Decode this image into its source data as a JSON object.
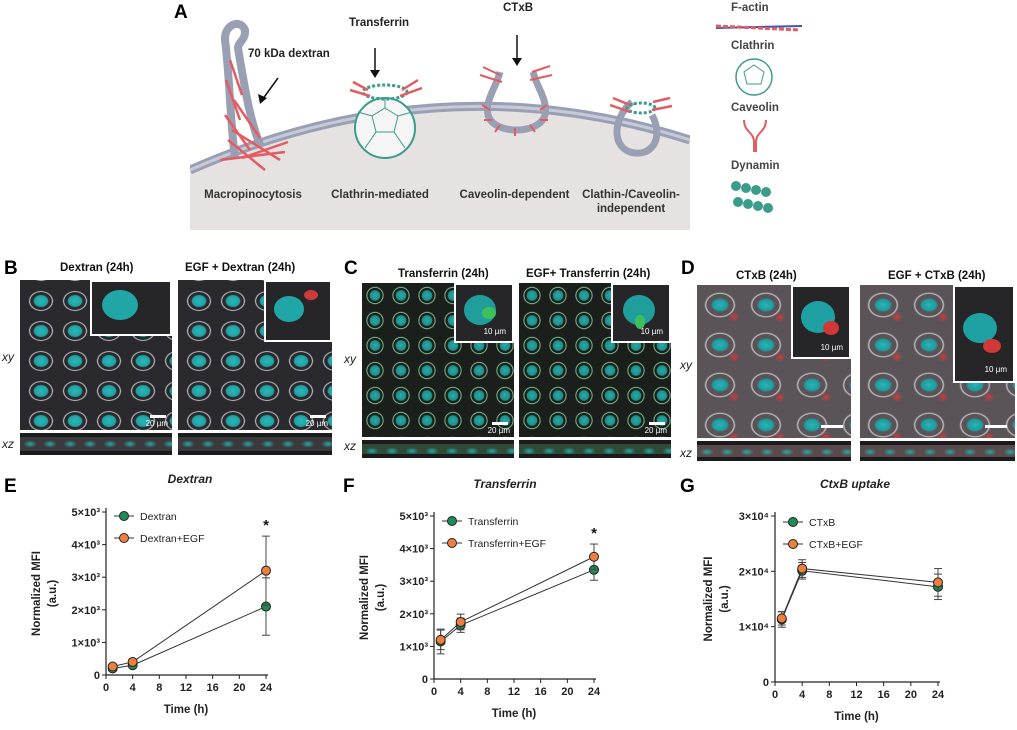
{
  "panels": {
    "A": "A",
    "B": "B",
    "C": "C",
    "D": "D",
    "E": "E",
    "F": "F",
    "G": "G"
  },
  "schematic": {
    "cargo": {
      "dextran": "70 kDa dextran",
      "transferrin": "Transferrin",
      "ctxb": "CTxB"
    },
    "routes": {
      "macropinocytosis": "Macropinocytosis",
      "clathrin": "Clathrin-mediated",
      "caveolin": "Caveolin-dependent",
      "independent_line1": "Clathin-/Caveolin-",
      "independent_line2": "independent"
    },
    "legend": {
      "factin": "F-actin",
      "clathrin": "Clathrin",
      "caveolin": "Caveolin",
      "dynamin": "Dynamin"
    },
    "colors": {
      "membrane": "#9aa0b4",
      "cytoplasm": "#e6e2e2",
      "actin": "#e25c63",
      "clathrin": "#3b9c8c"
    }
  },
  "microscopy": {
    "B": {
      "left_title": "Dextran (24h)",
      "right_title": "EGF + Dextran (24h)",
      "scale_left": "20 µm",
      "scale_right": "20 µm"
    },
    "C": {
      "left_title": "Transferrin (24h)",
      "right_title": "EGF+ Transferrin (24h)",
      "scale_left": "20 µm",
      "scale_right": "20 µm",
      "inset_scale": "10 µm"
    },
    "D": {
      "left_title": "CTxB (24h)",
      "right_title": "EGF + CTxB (24h)",
      "inset_scale": "10 µm"
    },
    "planes": {
      "xy": "xy",
      "xz": "xz"
    }
  },
  "chart_data": [
    {
      "panel": "E",
      "type": "line",
      "title": "Dextran",
      "xlabel": "Time (h)",
      "ylabel_line1": "Normalized MFI",
      "ylabel_line2": "(a.u.)",
      "x": [
        1,
        4,
        24
      ],
      "xticks": [
        "0",
        "4",
        "8",
        "12",
        "16",
        "20",
        "24"
      ],
      "xlim": [
        0,
        24
      ],
      "yticks": [
        "0",
        "1×10³",
        "2×10³",
        "3×10³",
        "4×10³",
        "5×10³"
      ],
      "ylim": [
        0,
        5000
      ],
      "series": [
        {
          "name": "Dextran",
          "color": "#1f8a55",
          "values": [
            200,
            300,
            2100
          ],
          "err": [
            60,
            80,
            880
          ]
        },
        {
          "name": "Dextran+EGF",
          "color": "#ee7f3c",
          "values": [
            260,
            400,
            3200
          ],
          "err": [
            70,
            90,
            1060
          ]
        }
      ],
      "annotation": {
        "text": "*",
        "x": 24
      },
      "legend": "top-left"
    },
    {
      "panel": "F",
      "type": "line",
      "title": "Transferrin",
      "xlabel": "Time (h)",
      "ylabel_line1": "Normalized MFI",
      "ylabel_line2": "(a.u.)",
      "x": [
        1,
        4,
        24
      ],
      "xticks": [
        "0",
        "4",
        "8",
        "12",
        "16",
        "20",
        "24"
      ],
      "xlim": [
        0,
        24
      ],
      "yticks": [
        "0",
        "1×10³",
        "2×10³",
        "3×10³",
        "4×10³",
        "5×10³"
      ],
      "ylim": [
        0,
        5000
      ],
      "series": [
        {
          "name": "Transferrin",
          "color": "#1f8a55",
          "values": [
            1150,
            1650,
            3350
          ],
          "err": [
            380,
            220,
            320
          ]
        },
        {
          "name": "Transferrin+EGF",
          "color": "#ee7f3c",
          "values": [
            1200,
            1750,
            3750
          ],
          "err": [
            300,
            240,
            390
          ]
        }
      ],
      "annotation": {
        "text": "*",
        "x": 24
      },
      "legend": "top-left"
    },
    {
      "panel": "G",
      "type": "line",
      "title": "CtxB uptake",
      "xlabel": "Time (h)",
      "ylabel_line1": "Normalized MFI",
      "ylabel_line2": "(a.u.)",
      "x": [
        1,
        4,
        24
      ],
      "xticks": [
        "0",
        "4",
        "8",
        "12",
        "16",
        "20",
        "24"
      ],
      "xlim": [
        0,
        24
      ],
      "yticks": [
        "0",
        "1×10⁴",
        "2×10⁴",
        "3×10⁴"
      ],
      "ylim": [
        0,
        30000
      ],
      "series": [
        {
          "name": "CTxB",
          "color": "#1f8a55",
          "values": [
            11300,
            20100,
            17200
          ],
          "err": [
            1400,
            1500,
            2300
          ]
        },
        {
          "name": "CTxB+EGF",
          "color": "#ee7f3c",
          "values": [
            11500,
            20500,
            18000
          ],
          "err": [
            1200,
            1600,
            2500
          ]
        }
      ],
      "legend": "top-left"
    }
  ]
}
